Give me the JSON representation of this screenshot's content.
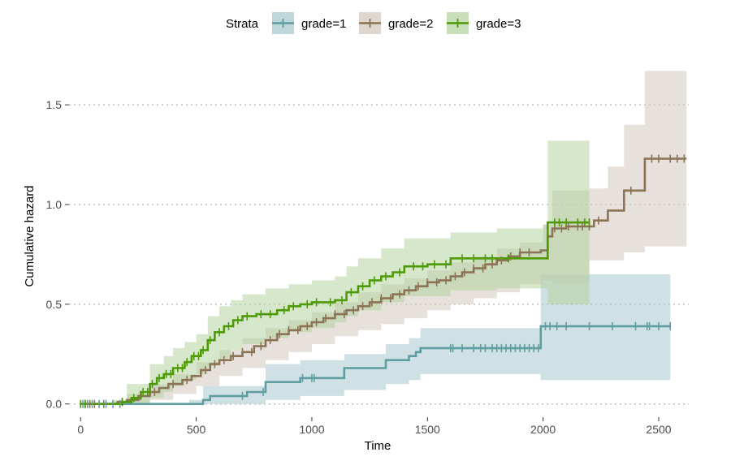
{
  "chart_data": {
    "type": "line",
    "xlabel": "Time",
    "ylabel": "Cumulative hazard",
    "xlim": [
      -50,
      2630
    ],
    "ylim": [
      -0.05,
      1.7
    ],
    "x_ticks": [
      0,
      500,
      1000,
      1500,
      2000,
      2500
    ],
    "x_tick_labels": [
      "0",
      "500",
      "1000",
      "1500",
      "2000",
      "2500"
    ],
    "y_ticks": [
      0.0,
      0.5,
      1.0,
      1.5
    ],
    "y_tick_labels": [
      "0.0",
      "0.5",
      "1.0",
      "1.5"
    ],
    "grid": "horizontal dotted",
    "legend": {
      "title": "Strata",
      "position": "top"
    },
    "series": [
      {
        "name": "grade=1",
        "color": "#5f9ea0",
        "band_color": "#a8c9cd",
        "steps": [
          [
            0,
            0
          ],
          [
            470,
            0
          ],
          [
            530,
            0.02
          ],
          [
            560,
            0.04
          ],
          [
            720,
            0.06
          ],
          [
            800,
            0.11
          ],
          [
            950,
            0.13
          ],
          [
            1140,
            0.18
          ],
          [
            1320,
            0.22
          ],
          [
            1420,
            0.24
          ],
          [
            1450,
            0.26
          ],
          [
            1470,
            0.28
          ],
          [
            1990,
            0.39
          ],
          [
            2550,
            0.39
          ]
        ],
        "upper": [
          [
            0,
            0
          ],
          [
            470,
            0.02
          ],
          [
            530,
            0.09
          ],
          [
            800,
            0.2
          ],
          [
            950,
            0.22
          ],
          [
            1140,
            0.25
          ],
          [
            1320,
            0.3
          ],
          [
            1420,
            0.33
          ],
          [
            1470,
            0.38
          ],
          [
            1990,
            0.65
          ],
          [
            2550,
            0.65
          ]
        ],
        "lower": [
          [
            0,
            0
          ],
          [
            470,
            0
          ],
          [
            800,
            0.02
          ],
          [
            950,
            0.04
          ],
          [
            1140,
            0.07
          ],
          [
            1320,
            0.1
          ],
          [
            1420,
            0.12
          ],
          [
            1470,
            0.15
          ],
          [
            1990,
            0.12
          ],
          [
            2550,
            0.12
          ]
        ],
        "censor": [
          10,
          30,
          50,
          80,
          110,
          140,
          170,
          700,
          790,
          960,
          1000,
          1010,
          1600,
          1610,
          1650,
          1700,
          1730,
          1750,
          1780,
          1800,
          1820,
          1840,
          1860,
          1880,
          1900,
          1920,
          1940,
          1960,
          1980,
          2010,
          2030,
          2060,
          2100,
          2200,
          2300,
          2400,
          2450,
          2460,
          2500,
          2550
        ]
      },
      {
        "name": "grade=2",
        "color": "#8b7355",
        "band_color": "#d3c9bf",
        "steps": [
          [
            0,
            0
          ],
          [
            130,
            0
          ],
          [
            160,
            0.01
          ],
          [
            200,
            0.02
          ],
          [
            250,
            0.04
          ],
          [
            300,
            0.06
          ],
          [
            340,
            0.08
          ],
          [
            380,
            0.1
          ],
          [
            440,
            0.12
          ],
          [
            480,
            0.14
          ],
          [
            520,
            0.17
          ],
          [
            560,
            0.2
          ],
          [
            600,
            0.22
          ],
          [
            650,
            0.24
          ],
          [
            700,
            0.26
          ],
          [
            750,
            0.29
          ],
          [
            800,
            0.32
          ],
          [
            850,
            0.35
          ],
          [
            900,
            0.37
          ],
          [
            950,
            0.39
          ],
          [
            1000,
            0.41
          ],
          [
            1050,
            0.43
          ],
          [
            1100,
            0.45
          ],
          [
            1150,
            0.47
          ],
          [
            1200,
            0.49
          ],
          [
            1250,
            0.51
          ],
          [
            1300,
            0.53
          ],
          [
            1350,
            0.55
          ],
          [
            1400,
            0.57
          ],
          [
            1450,
            0.59
          ],
          [
            1500,
            0.61
          ],
          [
            1550,
            0.62
          ],
          [
            1600,
            0.64
          ],
          [
            1650,
            0.66
          ],
          [
            1700,
            0.68
          ],
          [
            1750,
            0.7
          ],
          [
            1800,
            0.72
          ],
          [
            1850,
            0.74
          ],
          [
            1900,
            0.76
          ],
          [
            1990,
            0.77
          ],
          [
            2020,
            0.84
          ],
          [
            2040,
            0.88
          ],
          [
            2100,
            0.89
          ],
          [
            2220,
            0.92
          ],
          [
            2280,
            0.97
          ],
          [
            2350,
            1.07
          ],
          [
            2440,
            1.23
          ],
          [
            2620,
            1.23
          ]
        ],
        "upper": [
          [
            0,
            0
          ],
          [
            130,
            0.01
          ],
          [
            200,
            0.05
          ],
          [
            300,
            0.1
          ],
          [
            400,
            0.15
          ],
          [
            500,
            0.21
          ],
          [
            600,
            0.27
          ],
          [
            700,
            0.33
          ],
          [
            800,
            0.38
          ],
          [
            900,
            0.42
          ],
          [
            1000,
            0.46
          ],
          [
            1100,
            0.51
          ],
          [
            1200,
            0.56
          ],
          [
            1300,
            0.6
          ],
          [
            1400,
            0.63
          ],
          [
            1500,
            0.67
          ],
          [
            1600,
            0.71
          ],
          [
            1700,
            0.74
          ],
          [
            1800,
            0.78
          ],
          [
            1900,
            0.81
          ],
          [
            2000,
            0.9
          ],
          [
            2040,
            1.07
          ],
          [
            2200,
            1.08
          ],
          [
            2280,
            1.19
          ],
          [
            2350,
            1.4
          ],
          [
            2440,
            1.67
          ],
          [
            2620,
            1.67
          ]
        ],
        "lower": [
          [
            0,
            0
          ],
          [
            130,
            0
          ],
          [
            200,
            0
          ],
          [
            300,
            0.02
          ],
          [
            400,
            0.05
          ],
          [
            500,
            0.09
          ],
          [
            600,
            0.14
          ],
          [
            700,
            0.18
          ],
          [
            800,
            0.22
          ],
          [
            900,
            0.26
          ],
          [
            1000,
            0.3
          ],
          [
            1100,
            0.34
          ],
          [
            1200,
            0.37
          ],
          [
            1300,
            0.4
          ],
          [
            1400,
            0.43
          ],
          [
            1500,
            0.47
          ],
          [
            1600,
            0.5
          ],
          [
            1700,
            0.53
          ],
          [
            1800,
            0.56
          ],
          [
            1900,
            0.6
          ],
          [
            2000,
            0.62
          ],
          [
            2040,
            0.6
          ],
          [
            2200,
            0.72
          ],
          [
            2280,
            0.72
          ],
          [
            2350,
            0.76
          ],
          [
            2440,
            0.79
          ],
          [
            2620,
            0.79
          ]
        ],
        "censor": [
          20,
          40,
          60,
          100,
          180,
          260,
          320,
          400,
          460,
          540,
          580,
          620,
          660,
          700,
          740,
          780,
          820,
          860,
          900,
          940,
          980,
          1020,
          1060,
          1100,
          1140,
          1180,
          1220,
          1260,
          1300,
          1340,
          1380,
          1420,
          1460,
          1500,
          1540,
          1580,
          1620,
          1660,
          1700,
          1740,
          1780,
          1820,
          1860,
          1900,
          1940,
          2050,
          2080,
          2110,
          2150,
          2170,
          2200,
          2240,
          2380,
          2470,
          2500,
          2550,
          2580,
          2610
        ]
      },
      {
        "name": "grade=3",
        "color": "#4e9a06",
        "band_color": "#b5d4a1",
        "steps": [
          [
            0,
            0
          ],
          [
            140,
            0
          ],
          [
            180,
            0.01
          ],
          [
            220,
            0.03
          ],
          [
            260,
            0.06
          ],
          [
            300,
            0.1
          ],
          [
            330,
            0.13
          ],
          [
            360,
            0.15
          ],
          [
            400,
            0.18
          ],
          [
            450,
            0.21
          ],
          [
            480,
            0.24
          ],
          [
            520,
            0.27
          ],
          [
            550,
            0.32
          ],
          [
            580,
            0.36
          ],
          [
            620,
            0.39
          ],
          [
            660,
            0.42
          ],
          [
            700,
            0.44
          ],
          [
            760,
            0.45
          ],
          [
            850,
            0.47
          ],
          [
            900,
            0.49
          ],
          [
            950,
            0.5
          ],
          [
            1000,
            0.51
          ],
          [
            1100,
            0.52
          ],
          [
            1150,
            0.56
          ],
          [
            1200,
            0.59
          ],
          [
            1250,
            0.62
          ],
          [
            1300,
            0.64
          ],
          [
            1350,
            0.66
          ],
          [
            1400,
            0.69
          ],
          [
            1500,
            0.7
          ],
          [
            1600,
            0.73
          ],
          [
            1800,
            0.73
          ],
          [
            2020,
            0.91
          ],
          [
            2200,
            0.91
          ]
        ],
        "upper": [
          [
            0,
            0
          ],
          [
            140,
            0.02
          ],
          [
            200,
            0.1
          ],
          [
            300,
            0.2
          ],
          [
            360,
            0.24
          ],
          [
            400,
            0.28
          ],
          [
            450,
            0.31
          ],
          [
            500,
            0.35
          ],
          [
            550,
            0.44
          ],
          [
            600,
            0.49
          ],
          [
            650,
            0.52
          ],
          [
            700,
            0.55
          ],
          [
            800,
            0.58
          ],
          [
            900,
            0.6
          ],
          [
            1000,
            0.62
          ],
          [
            1100,
            0.64
          ],
          [
            1150,
            0.69
          ],
          [
            1200,
            0.73
          ],
          [
            1300,
            0.78
          ],
          [
            1400,
            0.83
          ],
          [
            1600,
            0.86
          ],
          [
            1800,
            0.88
          ],
          [
            2000,
            0.9
          ],
          [
            2020,
            1.32
          ],
          [
            2200,
            1.32
          ]
        ],
        "lower": [
          [
            0,
            0
          ],
          [
            140,
            0
          ],
          [
            200,
            0
          ],
          [
            300,
            0.03
          ],
          [
            360,
            0.06
          ],
          [
            400,
            0.09
          ],
          [
            450,
            0.12
          ],
          [
            500,
            0.15
          ],
          [
            550,
            0.19
          ],
          [
            600,
            0.23
          ],
          [
            650,
            0.27
          ],
          [
            700,
            0.3
          ],
          [
            800,
            0.33
          ],
          [
            900,
            0.36
          ],
          [
            1000,
            0.38
          ],
          [
            1100,
            0.41
          ],
          [
            1150,
            0.44
          ],
          [
            1200,
            0.47
          ],
          [
            1300,
            0.51
          ],
          [
            1400,
            0.54
          ],
          [
            1600,
            0.57
          ],
          [
            1800,
            0.58
          ],
          [
            2000,
            0.58
          ],
          [
            2020,
            0.5
          ],
          [
            2200,
            0.5
          ]
        ],
        "censor": [
          0,
          20,
          180,
          230,
          270,
          290,
          310,
          340,
          370,
          390,
          420,
          440,
          460,
          490,
          510,
          530,
          560,
          600,
          640,
          680,
          720,
          780,
          820,
          880,
          920,
          980,
          1020,
          1080,
          1130,
          1170,
          1220,
          1270,
          1320,
          1380,
          1440,
          1480,
          1530,
          1580,
          1650,
          1700,
          1750,
          1780,
          1850,
          2050,
          2070,
          2100,
          2150,
          2180,
          2200
        ]
      }
    ]
  }
}
